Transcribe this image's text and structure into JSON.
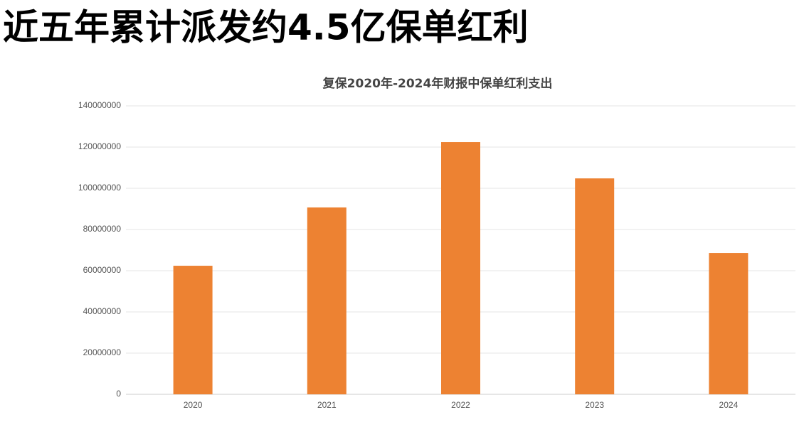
{
  "headline": "近五年累计派发约4.5亿保单红利",
  "chart_data": {
    "type": "bar",
    "title": "复保2020年-2024年财报中保单红利支出",
    "categories": [
      "2020",
      "2021",
      "2022",
      "2023",
      "2024"
    ],
    "values": [
      62400000,
      90700000,
      122400000,
      104800000,
      68600000
    ],
    "color": "#ed8232",
    "ylim": [
      0,
      140000000
    ],
    "yticks": [
      0,
      20000000,
      40000000,
      60000000,
      80000000,
      100000000,
      120000000,
      140000000
    ],
    "grid": true
  }
}
